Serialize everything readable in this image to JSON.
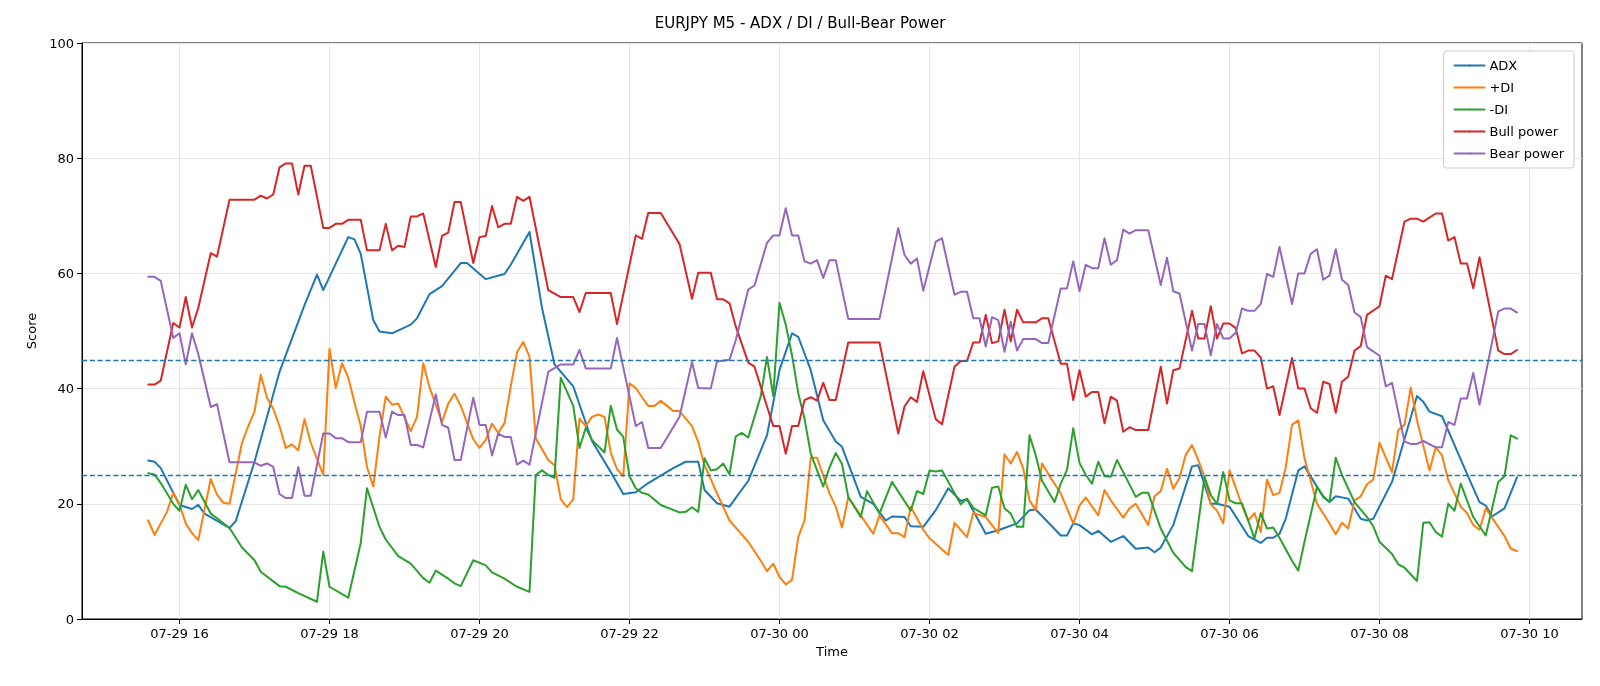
{
  "chart_data": {
    "type": "line",
    "title": "EURJPY M5 - ADX / DI / Bull-Bear Power",
    "xlabel": "Time",
    "ylabel": "Score",
    "xlim": [
      "--07-29T14:42",
      "--07-30T10:42"
    ],
    "xticks": [
      {
        "value": "--07-29T16:00",
        "label": "07-29 16"
      },
      {
        "value": "--07-29T18:00",
        "label": "07-29 18"
      },
      {
        "value": "--07-29T20:00",
        "label": "07-29 20"
      },
      {
        "value": "--07-29T22:00",
        "label": "07-29 22"
      },
      {
        "value": "--07-30T00:00",
        "label": "07-30 00"
      },
      {
        "value": "--07-30T02:00",
        "label": "07-30 02"
      },
      {
        "value": "--07-30T04:00",
        "label": "07-30 04"
      },
      {
        "value": "--07-30T06:00",
        "label": "07-30 06"
      },
      {
        "value": "--07-30T08:00",
        "label": "07-30 08"
      },
      {
        "value": "--07-30T10:00",
        "label": "07-30 10"
      }
    ],
    "ylim": [
      0,
      100
    ],
    "yticks": [
      0,
      20,
      40,
      60,
      80,
      100
    ],
    "grid": true,
    "legend": "top right",
    "ref_lines": [
      {
        "axis": "y",
        "value": 45,
        "color": "#1f77b4",
        "line_style": "dashed"
      },
      {
        "axis": "y",
        "value": 25,
        "color": "#1f77b4",
        "line_style": "dashed"
      }
    ],
    "series": [
      {
        "name": "ADX",
        "color": "#1f77b4",
        "x": [
          "--07-29T15:35",
          "--07-29T15:40",
          "--07-29T15:45",
          "--07-29T16:00",
          "--07-29T16:10",
          "--07-29T16:15",
          "--07-29T16:20",
          "--07-29T16:40",
          "--07-29T16:45",
          "--07-29T17:00",
          "--07-29T17:20",
          "--07-29T17:40",
          "--07-29T17:50",
          "--07-29T17:55",
          "--07-29T18:15",
          "--07-29T18:20",
          "--07-29T18:25",
          "--07-29T18:35",
          "--07-29T18:40",
          "--07-29T18:50",
          "--07-29T19:05",
          "--07-29T19:10",
          "--07-29T19:20",
          "--07-29T19:30",
          "--07-29T19:45",
          "--07-29T19:50",
          "--07-29T20:05",
          "--07-29T20:20",
          "--07-29T20:25",
          "--07-29T20:40",
          "--07-29T20:50",
          "--07-29T21:00",
          "--07-29T21:15",
          "--07-29T21:30",
          "--07-29T21:45",
          "--07-29T21:55",
          "--07-29T22:05",
          "--07-29T22:15",
          "--07-29T22:35",
          "--07-29T22:45",
          "--07-29T22:55",
          "--07-29T23:00",
          "--07-29T23:10",
          "--07-29T23:20",
          "--07-29T23:35",
          "--07-29T23:50",
          "--07-30T00:00",
          "--07-30T00:10",
          "--07-30T00:15",
          "--07-30T00:25",
          "--07-30T00:35",
          "--07-30T00:45",
          "--07-30T00:50",
          "--07-30T01:05",
          "--07-30T01:15",
          "--07-30T01:25",
          "--07-30T01:30",
          "--07-30T01:40",
          "--07-30T01:45",
          "--07-30T01:55",
          "--07-30T02:05",
          "--07-30T02:15",
          "--07-30T02:25",
          "--07-30T02:30",
          "--07-30T02:45",
          "--07-30T02:55",
          "--07-30T03:10",
          "--07-30T03:20",
          "--07-30T03:25",
          "--07-30T03:45",
          "--07-30T03:50",
          "--07-30T03:55",
          "--07-30T04:00",
          "--07-30T04:10",
          "--07-30T04:15",
          "--07-30T04:25",
          "--07-30T04:35",
          "--07-30T04:45",
          "--07-30T04:55",
          "--07-30T05:00",
          "--07-30T05:05",
          "--07-30T05:15",
          "--07-30T05:30",
          "--07-30T05:35",
          "--07-30T05:45",
          "--07-30T05:50",
          "--07-30T06:00",
          "--07-30T06:15",
          "--07-30T06:25",
          "--07-30T06:30",
          "--07-30T06:35",
          "--07-30T06:40",
          "--07-30T06:45",
          "--07-30T06:55",
          "--07-30T07:00",
          "--07-30T07:15",
          "--07-30T07:20",
          "--07-30T07:25",
          "--07-30T07:35",
          "--07-30T07:45",
          "--07-30T07:50",
          "--07-30T07:55",
          "--07-30T08:10",
          "--07-30T08:30",
          "--07-30T08:35",
          "--07-30T08:40",
          "--07-30T08:50",
          "--07-30T09:10",
          "--07-30T09:20",
          "--07-30T09:25",
          "--07-30T09:30",
          "--07-30T09:40",
          "--07-30T09:50"
        ],
        "values": [
          27.5,
          27.3,
          26.2,
          19.8,
          19.1,
          19.8,
          18.3,
          15.8,
          17.0,
          27.3,
          42.9,
          54.5,
          59.8,
          57.1,
          66.3,
          65.9,
          63.4,
          51.9,
          49.9,
          49.6,
          51.1,
          52.2,
          56.4,
          57.8,
          61.8,
          61.8,
          59.0,
          59.9,
          61.5,
          67.2,
          54.0,
          44.2,
          40.4,
          30.9,
          25.5,
          21.7,
          22.0,
          23.6,
          26.2,
          27.3,
          27.3,
          22.4,
          20.1,
          19.5,
          24.0,
          31.9,
          43.2,
          49.6,
          49.0,
          43.2,
          34.5,
          30.8,
          29.9,
          21.2,
          20.0,
          17.1,
          17.8,
          17.7,
          16.1,
          16.0,
          18.9,
          22.7,
          20.5,
          20.8,
          14.8,
          15.4,
          16.6,
          18.9,
          19.0,
          14.5,
          14.5,
          16.6,
          16.3,
          14.7,
          15.3,
          13.4,
          14.4,
          12.2,
          12.4,
          11.6,
          12.4,
          16.3,
          26.5,
          26.7,
          20.0,
          20.0,
          19.5,
          14.4,
          13.2,
          14.1,
          14.1,
          14.8,
          17.4,
          25.8,
          26.5,
          21.2,
          20.3,
          21.3,
          20.9,
          17.4,
          17.1,
          17.4,
          23.8,
          38.7,
          37.7,
          36.0,
          35.2,
          25.2,
          20.3,
          19.7,
          17.8,
          19.2,
          24.6
        ]
      },
      {
        "name": "+DI",
        "color": "#ff7f0e",
        "x": [
          "--07-29T15:35",
          "--07-29T15:40",
          "--07-29T15:50",
          "--07-29T15:55",
          "--07-29T16:00",
          "--07-29T16:05",
          "--07-29T16:10",
          "--07-29T16:15",
          "--07-29T16:25",
          "--07-29T16:30",
          "--07-29T16:35",
          "--07-29T16:40",
          "--07-29T16:50",
          "--07-29T16:55",
          "--07-29T17:00",
          "--07-29T17:05",
          "--07-29T17:10",
          "--07-29T17:15",
          "--07-29T17:20",
          "--07-29T17:25",
          "--07-29T17:30",
          "--07-29T17:35",
          "--07-29T17:40",
          "--07-29T17:45",
          "--07-29T17:55",
          "--07-29T18:00",
          "--07-29T18:05",
          "--07-29T18:10",
          "--07-29T18:15",
          "--07-29T18:20",
          "--07-29T18:25",
          "--07-29T18:30",
          "--07-29T18:35",
          "--07-29T18:40",
          "--07-29T18:45",
          "--07-29T18:50",
          "--07-29T18:55",
          "--07-29T19:05",
          "--07-29T19:10",
          "--07-29T19:15",
          "--07-29T19:20",
          "--07-29T19:30",
          "--07-29T19:35",
          "--07-29T19:40",
          "--07-29T19:45",
          "--07-29T19:55",
          "--07-29T20:00",
          "--07-29T20:05",
          "--07-29T20:10",
          "--07-29T20:15",
          "--07-29T20:20",
          "--07-29T20:25",
          "--07-29T20:30",
          "--07-29T20:35",
          "--07-29T20:40",
          "--07-29T20:45",
          "--07-29T20:55",
          "--07-29T21:00",
          "--07-29T21:05",
          "--07-29T21:10",
          "--07-29T21:15",
          "--07-29T21:20",
          "--07-29T21:25",
          "--07-29T21:30",
          "--07-29T21:35",
          "--07-29T21:40",
          "--07-29T21:45",
          "--07-29T21:50",
          "--07-29T21:55",
          "--07-29T22:00",
          "--07-29T22:05",
          "--07-29T22:10",
          "--07-29T22:15",
          "--07-29T22:20",
          "--07-29T22:25",
          "--07-29T22:30",
          "--07-29T22:35",
          "--07-29T22:40",
          "--07-29T22:50",
          "--07-29T22:55",
          "--07-29T23:00",
          "--07-29T23:10",
          "--07-29T23:20",
          "--07-29T23:35",
          "--07-29T23:45",
          "--07-29T23:50",
          "--07-29T23:55",
          "--07-30T00:00",
          "--07-30T00:05",
          "--07-30T00:10",
          "--07-30T00:15",
          "--07-30T00:20",
          "--07-30T00:25",
          "--07-30T00:30",
          "--07-30T00:40",
          "--07-30T00:45",
          "--07-30T00:50",
          "--07-30T00:55",
          "--07-30T01:05",
          "--07-30T01:15",
          "--07-30T01:20",
          "--07-30T01:30",
          "--07-30T01:35",
          "--07-30T01:40",
          "--07-30T01:45",
          "--07-30T01:55",
          "--07-30T02:00",
          "--07-30T02:15",
          "--07-30T02:20",
          "--07-30T02:30",
          "--07-30T02:35",
          "--07-30T02:45",
          "--07-30T02:55",
          "--07-30T03:00",
          "--07-30T03:05",
          "--07-30T03:10",
          "--07-30T03:15",
          "--07-30T03:20",
          "--07-30T03:25",
          "--07-30T03:30",
          "--07-30T03:35",
          "--07-30T03:45",
          "--07-30T03:55",
          "--07-30T04:00",
          "--07-30T04:05",
          "--07-30T04:15",
          "--07-30T04:20",
          "--07-30T04:25",
          "--07-30T04:35",
          "--07-30T04:40",
          "--07-30T04:45",
          "--07-30T04:55",
          "--07-30T05:00",
          "--07-30T05:05",
          "--07-30T05:10",
          "--07-30T05:15",
          "--07-30T05:20",
          "--07-30T05:25",
          "--07-30T05:30",
          "--07-30T05:35",
          "--07-30T05:40",
          "--07-30T05:45",
          "--07-30T05:50",
          "--07-30T05:55",
          "--07-30T06:00",
          "--07-30T06:05",
          "--07-30T06:10",
          "--07-30T06:15",
          "--07-30T06:20",
          "--07-30T06:25",
          "--07-30T06:30",
          "--07-30T06:35",
          "--07-30T06:40",
          "--07-30T06:45",
          "--07-30T06:50",
          "--07-30T06:55",
          "--07-30T07:00",
          "--07-30T07:10",
          "--07-30T07:20",
          "--07-30T07:25",
          "--07-30T07:30",
          "--07-30T07:35",
          "--07-30T07:40",
          "--07-30T07:45",
          "--07-30T07:50",
          "--07-30T07:55",
          "--07-30T08:00",
          "--07-30T08:10",
          "--07-30T08:15",
          "--07-30T08:20",
          "--07-30T08:25",
          "--07-30T08:30",
          "--07-30T08:40",
          "--07-30T08:45",
          "--07-30T08:50",
          "--07-30T08:55",
          "--07-30T09:00",
          "--07-30T09:05",
          "--07-30T09:10",
          "--07-30T09:15",
          "--07-30T09:20",
          "--07-30T09:25",
          "--07-30T09:35",
          "--07-30T09:40",
          "--07-30T09:45",
          "--07-30T09:50"
        ],
        "values": [
          17.1,
          14.6,
          18.6,
          21.9,
          19.9,
          16.6,
          14.9,
          13.7,
          24.3,
          21.6,
          20.2,
          20.0,
          30.6,
          33.5,
          36.0,
          42.4,
          38.4,
          36.5,
          33.5,
          29.7,
          30.3,
          29.3,
          34.7,
          30.6,
          25.0,
          46.9,
          40.1,
          44.4,
          41.9,
          37.6,
          33.5,
          26.4,
          23.0,
          31.7,
          38.6,
          37.2,
          37.4,
          32.6,
          35.1,
          44.4,
          40.2,
          34.2,
          37.4,
          39.1,
          37.0,
          31.2,
          29.7,
          31.1,
          33.9,
          32.3,
          34.0,
          40.4,
          46.3,
          48.1,
          45.5,
          31.4,
          27.6,
          26.7,
          20.8,
          19.4,
          20.8,
          34.8,
          33.5,
          35.1,
          35.5,
          35.1,
          28.9,
          26.0,
          24.8,
          40.9,
          40.1,
          38.5,
          37.0,
          37.0,
          37.9,
          37.0,
          36.1,
          36.1,
          33.5,
          30.7,
          26.7,
          21.8,
          17.1,
          13.4,
          10.1,
          8.3,
          9.6,
          7.3,
          6.0,
          6.8,
          14.2,
          17.1,
          28.0,
          28.0,
          21.8,
          19.5,
          15.9,
          21.1,
          18.0,
          14.8,
          18.0,
          14.9,
          14.9,
          14.2,
          19.5,
          15.5,
          14.0,
          11.1,
          16.7,
          14.2,
          18.4,
          17.7,
          14.9,
          28.6,
          27.0,
          29.0,
          26.1,
          20.6,
          18.9,
          27.0,
          25.2,
          21.8,
          16.6,
          19.7,
          21.1,
          18.0,
          22.4,
          20.6,
          17.6,
          19.2,
          20.0,
          16.3,
          21.3,
          22.2,
          26.1,
          22.6,
          24.5,
          28.5,
          30.2,
          27.6,
          24.7,
          19.9,
          18.8,
          16.6,
          25.8,
          22.8,
          19.7,
          17.1,
          18.4,
          15.1,
          24.2,
          21.5,
          21.9,
          26.3,
          33.7,
          34.5,
          27.9,
          20.0,
          16.6,
          14.7,
          16.7,
          15.7,
          20.6,
          21.3,
          23.4,
          24.2,
          30.6,
          25.5,
          32.8,
          33.7,
          40.2,
          34.5,
          25.8,
          29.8,
          28.4,
          24.1,
          21.8,
          19.5,
          18.4,
          16.3,
          15.5,
          19.2,
          16.0,
          14.4,
          12.2,
          11.8
        ]
      },
      {
        "name": "-DI",
        "color": "#2ca02c",
        "x": [
          "--07-29T15:35",
          "--07-29T15:40",
          "--07-29T15:45",
          "--07-29T15:55",
          "--07-29T16:00",
          "--07-29T16:05",
          "--07-29T16:10",
          "--07-29T16:15",
          "--07-29T16:25",
          "--07-29T16:30",
          "--07-29T16:40",
          "--07-29T16:50",
          "--07-29T17:00",
          "--07-29T17:05",
          "--07-29T17:20",
          "--07-29T17:25",
          "--07-29T17:35",
          "--07-29T17:50",
          "--07-29T17:55",
          "--07-29T18:00",
          "--07-29T18:15",
          "--07-29T18:25",
          "--07-29T18:30",
          "--07-29T18:40",
          "--07-29T18:45",
          "--07-29T18:55",
          "--07-29T19:05",
          "--07-29T19:15",
          "--07-29T19:20",
          "--07-29T19:25",
          "--07-29T19:35",
          "--07-29T19:40",
          "--07-29T19:45",
          "--07-29T19:55",
          "--07-29T20:05",
          "--07-29T20:10",
          "--07-29T20:20",
          "--07-29T20:30",
          "--07-29T20:40",
          "--07-29T20:45",
          "--07-29T20:50",
          "--07-29T20:55",
          "--07-29T21:00",
          "--07-29T21:05",
          "--07-29T21:15",
          "--07-29T21:20",
          "--07-29T21:25",
          "--07-29T21:30",
          "--07-29T21:40",
          "--07-29T21:45",
          "--07-29T21:50",
          "--07-29T21:55",
          "--07-29T22:00",
          "--07-29T22:05",
          "--07-29T22:10",
          "--07-29T22:15",
          "--07-29T22:25",
          "--07-29T22:40",
          "--07-29T22:45",
          "--07-29T22:50",
          "--07-29T22:55",
          "--07-29T23:00",
          "--07-29T23:05",
          "--07-29T23:10",
          "--07-29T23:15",
          "--07-29T23:20",
          "--07-29T23:25",
          "--07-29T23:30",
          "--07-29T23:35",
          "--07-29T23:45",
          "--07-29T23:50",
          "--07-29T23:55",
          "--07-30T00:00",
          "--07-30T00:05",
          "--07-30T00:10",
          "--07-30T00:15",
          "--07-30T00:20",
          "--07-30T00:25",
          "--07-30T00:35",
          "--07-30T00:40",
          "--07-30T00:45",
          "--07-30T00:50",
          "--07-30T00:55",
          "--07-30T01:05",
          "--07-30T01:10",
          "--07-30T01:20",
          "--07-30T01:30",
          "--07-30T01:45",
          "--07-30T01:50",
          "--07-30T01:55",
          "--07-30T02:00",
          "--07-30T02:05",
          "--07-30T02:10",
          "--07-30T02:25",
          "--07-30T02:30",
          "--07-30T02:35",
          "--07-30T02:45",
          "--07-30T02:50",
          "--07-30T02:55",
          "--07-30T03:00",
          "--07-30T03:05",
          "--07-30T03:10",
          "--07-30T03:15",
          "--07-30T03:20",
          "--07-30T03:25",
          "--07-30T03:30",
          "--07-30T03:40",
          "--07-30T03:45",
          "--07-30T03:50",
          "--07-30T03:55",
          "--07-30T04:00",
          "--07-30T04:05",
          "--07-30T04:10",
          "--07-30T04:15",
          "--07-30T04:20",
          "--07-30T04:25",
          "--07-30T04:30",
          "--07-30T04:45",
          "--07-30T04:50",
          "--07-30T04:55",
          "--07-30T05:05",
          "--07-30T05:15",
          "--07-30T05:25",
          "--07-30T05:30",
          "--07-30T05:35",
          "--07-30T05:40",
          "--07-30T05:45",
          "--07-30T05:50",
          "--07-30T05:55",
          "--07-30T06:00",
          "--07-30T06:05",
          "--07-30T06:10",
          "--07-30T06:20",
          "--07-30T06:25",
          "--07-30T06:30",
          "--07-30T06:35",
          "--07-30T06:40",
          "--07-30T06:50",
          "--07-30T06:55",
          "--07-30T07:00",
          "--07-30T07:10",
          "--07-30T07:15",
          "--07-30T07:20",
          "--07-30T07:25",
          "--07-30T07:30",
          "--07-30T07:40",
          "--07-30T07:50",
          "--07-30T07:55",
          "--07-30T08:00",
          "--07-30T08:10",
          "--07-30T08:15",
          "--07-30T08:20",
          "--07-30T08:30",
          "--07-30T08:35",
          "--07-30T08:40",
          "--07-30T08:45",
          "--07-30T08:50",
          "--07-30T08:55",
          "--07-30T09:00",
          "--07-30T09:05",
          "--07-30T09:15",
          "--07-30T09:25",
          "--07-30T09:35",
          "--07-30T09:40",
          "--07-30T09:45",
          "--07-30T09:50"
        ],
        "values": [
          25.3,
          25.1,
          23.6,
          20.0,
          18.8,
          23.3,
          20.8,
          22.4,
          18.3,
          17.5,
          15.8,
          12.4,
          10.2,
          8.2,
          5.7,
          5.6,
          4.5,
          3.0,
          11.7,
          5.6,
          3.7,
          13.2,
          22.7,
          16.0,
          13.8,
          10.9,
          9.6,
          7.1,
          6.3,
          8.4,
          7.0,
          6.2,
          5.7,
          10.2,
          9.3,
          8.1,
          7.0,
          5.6,
          4.7,
          25.0,
          25.8,
          25.0,
          24.5,
          41.9,
          37.0,
          29.7,
          33.2,
          31.1,
          28.9,
          37.0,
          32.9,
          31.6,
          24.8,
          22.7,
          21.9,
          21.6,
          19.8,
          18.5,
          18.6,
          19.4,
          18.6,
          27.9,
          25.8,
          26.0,
          27.0,
          25.1,
          31.7,
          32.3,
          31.5,
          38.7,
          45.5,
          38.7,
          54.9,
          51.1,
          45.8,
          39.2,
          34.8,
          28.7,
          23.0,
          26.3,
          28.8,
          26.9,
          21.2,
          17.7,
          22.2,
          18.3,
          23.8,
          18.8,
          22.2,
          21.7,
          25.8,
          25.6,
          25.8,
          19.9,
          20.9,
          19.3,
          18.0,
          22.8,
          23.0,
          19.2,
          18.3,
          16.0,
          16.0,
          31.9,
          28.4,
          24.0,
          20.3,
          23.5,
          25.9,
          33.1,
          27.1,
          25.0,
          23.5,
          27.3,
          24.8,
          24.7,
          27.6,
          21.2,
          21.9,
          21.9,
          15.7,
          11.5,
          9.0,
          8.3,
          16.6,
          24.7,
          21.5,
          20.0,
          25.5,
          20.6,
          20.1,
          20.1,
          14.0,
          18.4,
          15.7,
          15.9,
          14.1,
          10.1,
          8.4,
          13.4,
          22.9,
          21.3,
          20.3,
          28.0,
          25.0,
          20.3,
          17.7,
          16.1,
          13.4,
          11.3,
          9.5,
          8.9,
          6.6,
          16.7,
          16.8,
          15.1,
          14.3,
          20.0,
          18.8,
          23.5,
          17.7,
          14.5,
          23.8,
          24.8,
          31.9,
          31.3
        ]
      },
      {
        "name": "Bull power",
        "color": "#d62728",
        "x": [
          "--07-29T15:35",
          "--07-29T15:40",
          "--07-29T15:45",
          "--07-29T15:55",
          "--07-29T16:00",
          "--07-29T16:05",
          "--07-29T16:10",
          "--07-29T16:15",
          "--07-29T16:25",
          "--07-29T16:30",
          "--07-29T16:40",
          "--07-29T17:00",
          "--07-29T17:05",
          "--07-29T17:10",
          "--07-29T17:15",
          "--07-29T17:20",
          "--07-29T17:25",
          "--07-29T17:30",
          "--07-29T17:35",
          "--07-29T17:40",
          "--07-29T17:45",
          "--07-29T17:55",
          "--07-29T18:00",
          "--07-29T18:05",
          "--07-29T18:10",
          "--07-29T18:15",
          "--07-29T18:25",
          "--07-29T18:30",
          "--07-29T18:40",
          "--07-29T18:45",
          "--07-29T18:50",
          "--07-29T18:55",
          "--07-29T19:00",
          "--07-29T19:05",
          "--07-29T19:10",
          "--07-29T19:15",
          "--07-29T19:25",
          "--07-29T19:30",
          "--07-29T19:35",
          "--07-29T19:40",
          "--07-29T19:45",
          "--07-29T19:55",
          "--07-29T20:00",
          "--07-29T20:05",
          "--07-29T20:10",
          "--07-29T20:15",
          "--07-29T20:20",
          "--07-29T20:25",
          "--07-29T20:30",
          "--07-29T20:35",
          "--07-29T20:40",
          "--07-29T20:55",
          "--07-29T21:05",
          "--07-29T21:15",
          "--07-29T21:20",
          "--07-29T21:25",
          "--07-29T21:45",
          "--07-29T21:50",
          "--07-29T22:05",
          "--07-29T22:10",
          "--07-29T22:15",
          "--07-29T22:25",
          "--07-29T22:40",
          "--07-29T22:50",
          "--07-29T22:55",
          "--07-29T23:05",
          "--07-29T23:10",
          "--07-29T23:15",
          "--07-29T23:20",
          "--07-29T23:25",
          "--07-29T23:35",
          "--07-29T23:40",
          "--07-29T23:50",
          "--07-29T23:55",
          "--07-30T00:00",
          "--07-30T00:05",
          "--07-30T00:10",
          "--07-30T00:15",
          "--07-30T00:20",
          "--07-30T00:25",
          "--07-30T00:30",
          "--07-30T00:35",
          "--07-30T00:40",
          "--07-30T00:45",
          "--07-30T00:55",
          "--07-30T01:20",
          "--07-30T01:35",
          "--07-30T01:40",
          "--07-30T01:45",
          "--07-30T01:50",
          "--07-30T01:55",
          "--07-30T02:05",
          "--07-30T02:10",
          "--07-30T02:20",
          "--07-30T02:25",
          "--07-30T02:30",
          "--07-30T02:35",
          "--07-30T02:40",
          "--07-30T02:45",
          "--07-30T02:50",
          "--07-30T02:55",
          "--07-30T03:00",
          "--07-30T03:05",
          "--07-30T03:10",
          "--07-30T03:15",
          "--07-30T03:25",
          "--07-30T03:30",
          "--07-30T03:35",
          "--07-30T03:45",
          "--07-30T03:50",
          "--07-30T03:55",
          "--07-30T04:00",
          "--07-30T04:05",
          "--07-30T04:10",
          "--07-30T04:15",
          "--07-30T04:20",
          "--07-30T04:25",
          "--07-30T04:30",
          "--07-30T04:35",
          "--07-30T04:40",
          "--07-30T04:45",
          "--07-30T04:55",
          "--07-30T05:05",
          "--07-30T05:10",
          "--07-30T05:15",
          "--07-30T05:20",
          "--07-30T05:30",
          "--07-30T05:35",
          "--07-30T05:40",
          "--07-30T05:45",
          "--07-30T05:50",
          "--07-30T05:55",
          "--07-30T06:00",
          "--07-30T06:05",
          "--07-30T06:10",
          "--07-30T06:15",
          "--07-30T06:20",
          "--07-30T06:25",
          "--07-30T06:30",
          "--07-30T06:35",
          "--07-30T06:40",
          "--07-30T06:50",
          "--07-30T06:55",
          "--07-30T07:00",
          "--07-30T07:05",
          "--07-30T07:10",
          "--07-30T07:15",
          "--07-30T07:20",
          "--07-30T07:25",
          "--07-30T07:30",
          "--07-30T07:35",
          "--07-30T07:40",
          "--07-30T07:45",
          "--07-30T07:50",
          "--07-30T08:00",
          "--07-30T08:05",
          "--07-30T08:10",
          "--07-30T08:20",
          "--07-30T08:25",
          "--07-30T08:30",
          "--07-30T08:35",
          "--07-30T08:45",
          "--07-30T08:50",
          "--07-30T08:55",
          "--07-30T09:00",
          "--07-30T09:05",
          "--07-30T09:10",
          "--07-30T09:15",
          "--07-30T09:20",
          "--07-30T09:35",
          "--07-30T09:40",
          "--07-30T09:45",
          "--07-30T09:50"
        ],
        "values": [
          40.7,
          40.7,
          41.4,
          51.4,
          50.6,
          55.9,
          50.6,
          54.0,
          63.5,
          62.9,
          72.8,
          72.8,
          73.5,
          73.0,
          73.7,
          78.4,
          79.1,
          79.1,
          73.7,
          78.7,
          78.7,
          67.9,
          67.9,
          68.6,
          68.6,
          69.3,
          69.3,
          64.0,
          64.0,
          68.6,
          64.0,
          64.8,
          64.6,
          69.9,
          69.9,
          70.4,
          61.1,
          66.5,
          67.1,
          72.4,
          72.4,
          61.8,
          66.3,
          66.5,
          71.7,
          68.0,
          68.6,
          68.6,
          73.3,
          72.6,
          73.3,
          57.1,
          55.9,
          55.9,
          53.3,
          56.6,
          56.6,
          51.2,
          66.6,
          66.0,
          70.5,
          70.5,
          65.1,
          55.6,
          60.1,
          60.1,
          55.5,
          55.5,
          54.8,
          50.8,
          44.5,
          43.8,
          36.9,
          33.5,
          33.5,
          28.7,
          33.5,
          33.5,
          38.0,
          38.5,
          37.9,
          41.0,
          38.0,
          38.0,
          48.0,
          48.0,
          32.2,
          36.9,
          38.5,
          37.7,
          43.0,
          34.7,
          33.8,
          43.8,
          44.8,
          44.8,
          48.0,
          48.0,
          52.8,
          47.9,
          48.2,
          53.7,
          48.2,
          53.7,
          51.5,
          51.5,
          52.2,
          52.2,
          44.3,
          44.3,
          38.0,
          43.2,
          38.6,
          39.4,
          39.4,
          34.0,
          38.6,
          37.9,
          32.5,
          33.3,
          32.8,
          32.8,
          43.8,
          37.4,
          43.2,
          43.5,
          53.5,
          48.7,
          48.7,
          54.3,
          48.7,
          51.3,
          51.3,
          50.5,
          46.1,
          46.6,
          46.6,
          45.4,
          40.0,
          40.4,
          35.4,
          45.3,
          40.0,
          40.0,
          36.6,
          35.8,
          41.2,
          40.8,
          35.8,
          41.2,
          42.1,
          46.6,
          47.4,
          52.8,
          54.3,
          59.6,
          59.0,
          69.0,
          69.5,
          69.5,
          69.0,
          70.4,
          70.4,
          65.7,
          66.3,
          61.7,
          61.7,
          57.4,
          62.8,
          46.6,
          46.0,
          46.0,
          46.7
        ]
      },
      {
        "name": "Bear power",
        "color": "#9467bd",
        "x": [
          "--07-29T15:35",
          "--07-29T15:40",
          "--07-29T15:45",
          "--07-29T15:55",
          "--07-29T16:00",
          "--07-29T16:05",
          "--07-29T16:10",
          "--07-29T16:15",
          "--07-29T16:25",
          "--07-29T16:30",
          "--07-29T16:40",
          "--07-29T17:00",
          "--07-29T17:05",
          "--07-29T17:10",
          "--07-29T17:15",
          "--07-29T17:20",
          "--07-29T17:25",
          "--07-29T17:30",
          "--07-29T17:35",
          "--07-29T17:40",
          "--07-29T17:45",
          "--07-29T17:55",
          "--07-29T18:00",
          "--07-29T18:05",
          "--07-29T18:10",
          "--07-29T18:15",
          "--07-29T18:25",
          "--07-29T18:30",
          "--07-29T18:40",
          "--07-29T18:45",
          "--07-29T18:50",
          "--07-29T18:55",
          "--07-29T19:00",
          "--07-29T19:05",
          "--07-29T19:10",
          "--07-29T19:15",
          "--07-29T19:25",
          "--07-29T19:30",
          "--07-29T19:35",
          "--07-29T19:40",
          "--07-29T19:45",
          "--07-29T19:55",
          "--07-29T20:00",
          "--07-29T20:05",
          "--07-29T20:10",
          "--07-29T20:15",
          "--07-29T20:20",
          "--07-29T20:25",
          "--07-29T20:30",
          "--07-29T20:35",
          "--07-29T20:40",
          "--07-29T20:55",
          "--07-29T21:05",
          "--07-29T21:15",
          "--07-29T21:20",
          "--07-29T21:25",
          "--07-29T21:45",
          "--07-29T21:50",
          "--07-29T22:05",
          "--07-29T22:10",
          "--07-29T22:15",
          "--07-29T22:25",
          "--07-29T22:40",
          "--07-29T22:50",
          "--07-29T22:55",
          "--07-29T23:05",
          "--07-29T23:10",
          "--07-29T23:20",
          "--07-29T23:25",
          "--07-29T23:35",
          "--07-29T23:40",
          "--07-29T23:50",
          "--07-29T23:55",
          "--07-30T00:00",
          "--07-30T00:05",
          "--07-30T00:10",
          "--07-30T00:15",
          "--07-30T00:20",
          "--07-30T00:25",
          "--07-30T00:30",
          "--07-30T00:35",
          "--07-30T00:40",
          "--07-30T00:45",
          "--07-30T00:55",
          "--07-30T01:20",
          "--07-30T01:35",
          "--07-30T01:40",
          "--07-30T01:45",
          "--07-30T01:50",
          "--07-30T01:55",
          "--07-30T02:05",
          "--07-30T02:10",
          "--07-30T02:20",
          "--07-30T02:25",
          "--07-30T02:30",
          "--07-30T02:35",
          "--07-30T02:40",
          "--07-30T02:45",
          "--07-30T02:50",
          "--07-30T02:55",
          "--07-30T03:00",
          "--07-30T03:05",
          "--07-30T03:10",
          "--07-30T03:15",
          "--07-30T03:25",
          "--07-30T03:30",
          "--07-30T03:35",
          "--07-30T03:45",
          "--07-30T03:50",
          "--07-30T03:55",
          "--07-30T04:00",
          "--07-30T04:05",
          "--07-30T04:10",
          "--07-30T04:15",
          "--07-30T04:20",
          "--07-30T04:25",
          "--07-30T04:30",
          "--07-30T04:35",
          "--07-30T04:40",
          "--07-30T04:45",
          "--07-30T04:55",
          "--07-30T05:05",
          "--07-30T05:10",
          "--07-30T05:15",
          "--07-30T05:20",
          "--07-30T05:30",
          "--07-30T05:35",
          "--07-30T05:40",
          "--07-30T05:45",
          "--07-30T05:50",
          "--07-30T05:55",
          "--07-30T06:00",
          "--07-30T06:05",
          "--07-30T06:10",
          "--07-30T06:15",
          "--07-30T06:20",
          "--07-30T06:25",
          "--07-30T06:30",
          "--07-30T06:35",
          "--07-30T06:40",
          "--07-30T06:50",
          "--07-30T06:55",
          "--07-30T07:00",
          "--07-30T07:05",
          "--07-30T07:10",
          "--07-30T07:15",
          "--07-30T07:20",
          "--07-30T07:25",
          "--07-30T07:30",
          "--07-30T07:35",
          "--07-30T07:40",
          "--07-30T07:45",
          "--07-30T07:50",
          "--07-30T08:00",
          "--07-30T08:05",
          "--07-30T08:10",
          "--07-30T08:20",
          "--07-30T08:25",
          "--07-30T08:30",
          "--07-30T08:35",
          "--07-30T08:45",
          "--07-30T08:50",
          "--07-30T08:55",
          "--07-30T09:00",
          "--07-30T09:05",
          "--07-30T09:10",
          "--07-30T09:15",
          "--07-30T09:20",
          "--07-30T09:35",
          "--07-30T09:40",
          "--07-30T09:45",
          "--07-30T09:50"
        ],
        "values": [
          59.4,
          59.4,
          58.7,
          48.8,
          49.6,
          44.2,
          49.6,
          46.0,
          36.8,
          37.3,
          27.2,
          27.2,
          26.6,
          27.0,
          26.4,
          21.7,
          21.0,
          21.0,
          26.4,
          21.4,
          21.4,
          32.2,
          32.2,
          31.4,
          31.4,
          30.7,
          30.7,
          36.0,
          36.0,
          31.5,
          36.0,
          35.4,
          35.4,
          30.2,
          30.2,
          29.8,
          39.0,
          33.7,
          33.2,
          27.6,
          27.6,
          38.4,
          33.7,
          33.7,
          28.4,
          32.2,
          31.6,
          31.6,
          26.8,
          27.5,
          26.8,
          42.9,
          44.2,
          44.2,
          46.7,
          43.5,
          43.5,
          48.8,
          33.5,
          34.2,
          29.7,
          29.7,
          35.1,
          44.6,
          40.1,
          40.0,
          44.7,
          45.0,
          48.4,
          57.2,
          57.9,
          65.3,
          66.6,
          66.6,
          71.3,
          66.6,
          66.6,
          62.1,
          61.7,
          62.3,
          59.2,
          62.3,
          62.3,
          52.1,
          52.1,
          67.9,
          63.2,
          61.7,
          62.6,
          57.0,
          65.5,
          66.1,
          56.3,
          56.8,
          56.8,
          52.2,
          52.2,
          47.3,
          52.4,
          51.9,
          46.4,
          51.6,
          46.6,
          48.6,
          48.6,
          47.9,
          47.9,
          57.4,
          57.4,
          62.1,
          56.9,
          61.5,
          60.9,
          60.9,
          66.1,
          61.5,
          62.3,
          67.6,
          66.9,
          67.5,
          67.5,
          58.0,
          62.7,
          56.9,
          56.5,
          46.6,
          51.2,
          51.2,
          45.8,
          51.2,
          48.7,
          48.7,
          49.7,
          53.9,
          53.5,
          53.5,
          54.7,
          59.9,
          59.4,
          64.6,
          54.7,
          60.0,
          60.0,
          63.4,
          64.2,
          58.9,
          59.6,
          64.2,
          58.9,
          58.0,
          53.2,
          52.4,
          47.2,
          45.7,
          40.4,
          41.0,
          30.8,
          30.4,
          30.4,
          30.9,
          29.8,
          29.8,
          34.2,
          33.7,
          38.3,
          38.3,
          42.7,
          37.2,
          53.4,
          53.9,
          53.9,
          53.2
        ]
      }
    ]
  }
}
